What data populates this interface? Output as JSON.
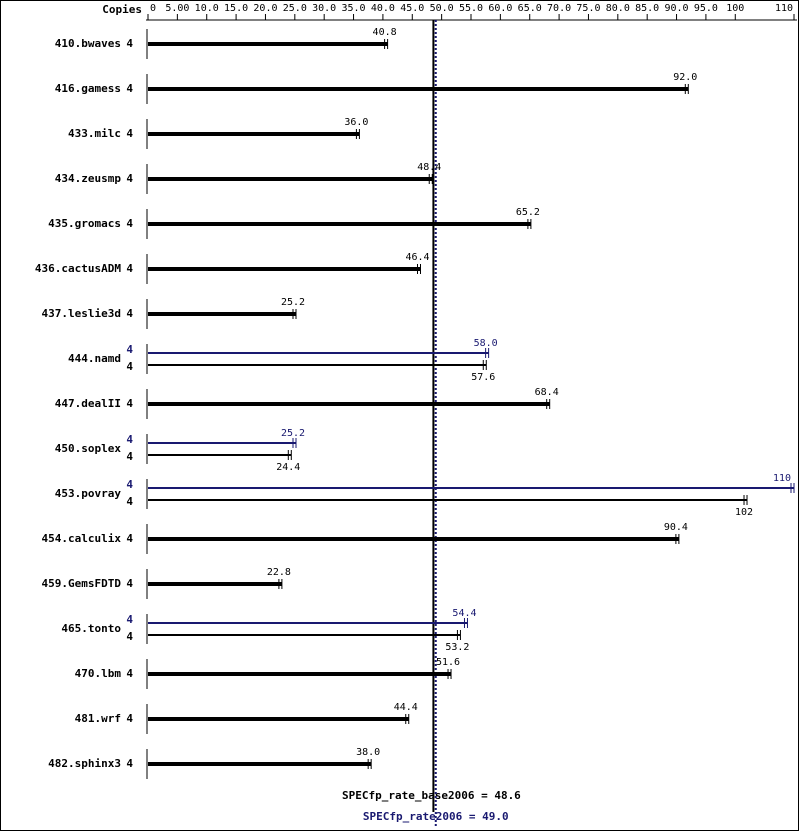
{
  "chart_data": {
    "type": "hbar-spec",
    "copies_header": "Copies",
    "categories": [
      "410.bwaves",
      "416.gamess",
      "433.milc",
      "434.zeusmp",
      "435.gromacs",
      "436.cactusADM",
      "437.leslie3d",
      "444.namd",
      "447.dealII",
      "450.soplex",
      "453.povray",
      "454.calculix",
      "459.GemsFDTD",
      "465.tonto",
      "470.lbm",
      "481.wrf",
      "482.sphinx3"
    ],
    "copies": [
      4,
      4,
      4,
      4,
      4,
      4,
      4,
      4,
      4,
      4,
      4,
      4,
      4,
      4,
      4,
      4,
      4
    ],
    "values": [
      40.8,
      92.0,
      36.0,
      48.4,
      65.2,
      46.4,
      25.2,
      57.6,
      68.4,
      24.4,
      102,
      90.4,
      22.8,
      53.2,
      51.6,
      44.4,
      38.0
    ],
    "value_labels": [
      "40.8",
      "92.0",
      "36.0",
      "48.4",
      "65.2",
      "46.4",
      "25.2",
      "57.6",
      "68.4",
      "24.4",
      "102",
      "90.4",
      "22.8",
      "53.2",
      "51.6",
      "44.4",
      "38.0"
    ],
    "peak_copies": [
      null,
      null,
      null,
      null,
      null,
      null,
      null,
      4,
      null,
      4,
      4,
      null,
      null,
      4,
      null,
      null,
      null
    ],
    "peak_values": [
      null,
      null,
      null,
      null,
      null,
      null,
      null,
      58.0,
      null,
      25.2,
      110,
      null,
      null,
      54.4,
      null,
      null,
      null
    ],
    "peak_value_labels": [
      null,
      null,
      null,
      null,
      null,
      null,
      null,
      "58.0",
      null,
      "25.2",
      "110",
      null,
      null,
      "54.4",
      null,
      null,
      null
    ],
    "color": "#000000",
    "peak_color": "#191970",
    "xlim": [
      0,
      110
    ],
    "xticks": [
      0,
      {
        "value": 5,
        "label": "5.00"
      },
      {
        "value": 10,
        "label": "10.0"
      },
      {
        "value": 15,
        "label": "15.0"
      },
      {
        "value": 20,
        "label": "20.0"
      },
      {
        "value": 25,
        "label": "25.0"
      },
      {
        "value": 30,
        "label": "30.0"
      },
      {
        "value": 35,
        "label": "35.0"
      },
      {
        "value": 40,
        "label": "40.0"
      },
      {
        "value": 45,
        "label": "45.0"
      },
      {
        "value": 50,
        "label": "50.0"
      },
      {
        "value": 55,
        "label": "55.0"
      },
      {
        "value": 60,
        "label": "60.0"
      },
      {
        "value": 65,
        "label": "65.0"
      },
      {
        "value": 70,
        "label": "70.0"
      },
      {
        "value": 75,
        "label": "75.0"
      },
      {
        "value": 80,
        "label": "80.0"
      },
      {
        "value": 85,
        "label": "85.0"
      },
      {
        "value": 90,
        "label": "90.0"
      },
      {
        "value": 95,
        "label": "95.0"
      },
      100,
      110
    ],
    "reference_lines": [
      {
        "label": "SPECfp_rate_base2006 = 48.6",
        "value": 48.6,
        "color": "#000000"
      },
      {
        "label": "SPECfp_rate2006 = 49.0",
        "value": 49.0,
        "color": "#191970"
      }
    ]
  }
}
